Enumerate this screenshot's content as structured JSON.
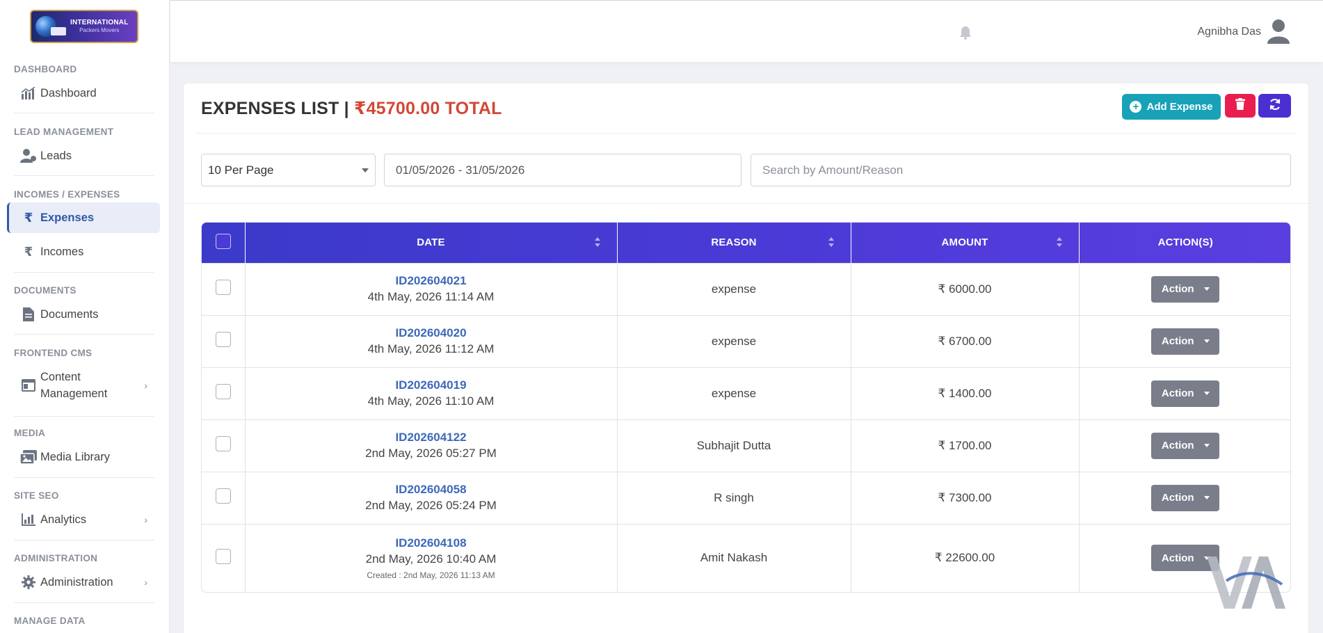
{
  "brand": {
    "line1": "INTERNATIONAL",
    "line2": "Packers Movers"
  },
  "sidebar": {
    "sections": [
      {
        "title": "DASHBOARD",
        "items": [
          {
            "label": "Dashboard",
            "icon": "chart-icon"
          }
        ]
      },
      {
        "title": "LEAD MANAGEMENT",
        "items": [
          {
            "label": "Leads",
            "icon": "user-icon"
          }
        ]
      },
      {
        "title": "INCOMES / EXPENSES",
        "items": [
          {
            "label": "Expenses",
            "icon": "rupee-icon",
            "active": true
          },
          {
            "label": "Incomes",
            "icon": "rupee-icon"
          }
        ]
      },
      {
        "title": "DOCUMENTS",
        "items": [
          {
            "label": "Documents",
            "icon": "file-icon"
          }
        ]
      },
      {
        "title": "FRONTEND CMS",
        "items": [
          {
            "label": "Content Management",
            "icon": "window-icon",
            "expandable": true
          }
        ]
      },
      {
        "title": "MEDIA",
        "items": [
          {
            "label": "Media Library",
            "icon": "images-icon"
          }
        ]
      },
      {
        "title": "SITE SEO",
        "items": [
          {
            "label": "Analytics",
            "icon": "bar-chart-icon",
            "expandable": true
          }
        ]
      },
      {
        "title": "ADMINISTRATION",
        "items": [
          {
            "label": "Administration",
            "icon": "gear-icon",
            "expandable": true
          }
        ]
      },
      {
        "title": "MANAGE DATA",
        "items": []
      }
    ]
  },
  "header": {
    "user_name": "Agnibha Das",
    "bell_icon": "bell-icon",
    "avatar_icon": "user-avatar-icon"
  },
  "page": {
    "title": "EXPENSES LIST |",
    "total": "₹45700.00 TOTAL",
    "add_button": "Add Expense",
    "colors": {
      "add": "#17a2b8",
      "delete": "#e91e4f",
      "refresh": "#4c2fd1",
      "header": "#4a3ad6"
    }
  },
  "filters": {
    "per_page": "10 Per Page",
    "date_range": "01/05/2026 - 31/05/2026",
    "search_placeholder": "Search by Amount/Reason"
  },
  "table": {
    "columns": [
      "DATE",
      "REASON",
      "AMOUNT",
      "ACTION(S)"
    ],
    "action_label": "Action",
    "rows": [
      {
        "id": "ID202604021",
        "date": "4th May, 2026 11:14 AM",
        "reason": "expense",
        "amount": "₹ 6000.00"
      },
      {
        "id": "ID202604020",
        "date": "4th May, 2026 11:12 AM",
        "reason": "expense",
        "amount": "₹ 6700.00"
      },
      {
        "id": "ID202604019",
        "date": "4th May, 2026 11:10 AM",
        "reason": "expense",
        "amount": "₹ 1400.00"
      },
      {
        "id": "ID202604122",
        "date": "2nd May, 2026 05:27 PM",
        "reason": "Subhajit Dutta",
        "amount": "₹ 1700.00"
      },
      {
        "id": "ID202604058",
        "date": "2nd May, 2026 05:24 PM",
        "reason": "R singh",
        "amount": "₹ 7300.00"
      },
      {
        "id": "ID202604108",
        "date": "2nd May, 2026 10:40 AM",
        "reason": "Amit Nakash",
        "amount": "₹ 22600.00",
        "created": "Created : 2nd May, 2026 11:13 AM"
      }
    ]
  }
}
